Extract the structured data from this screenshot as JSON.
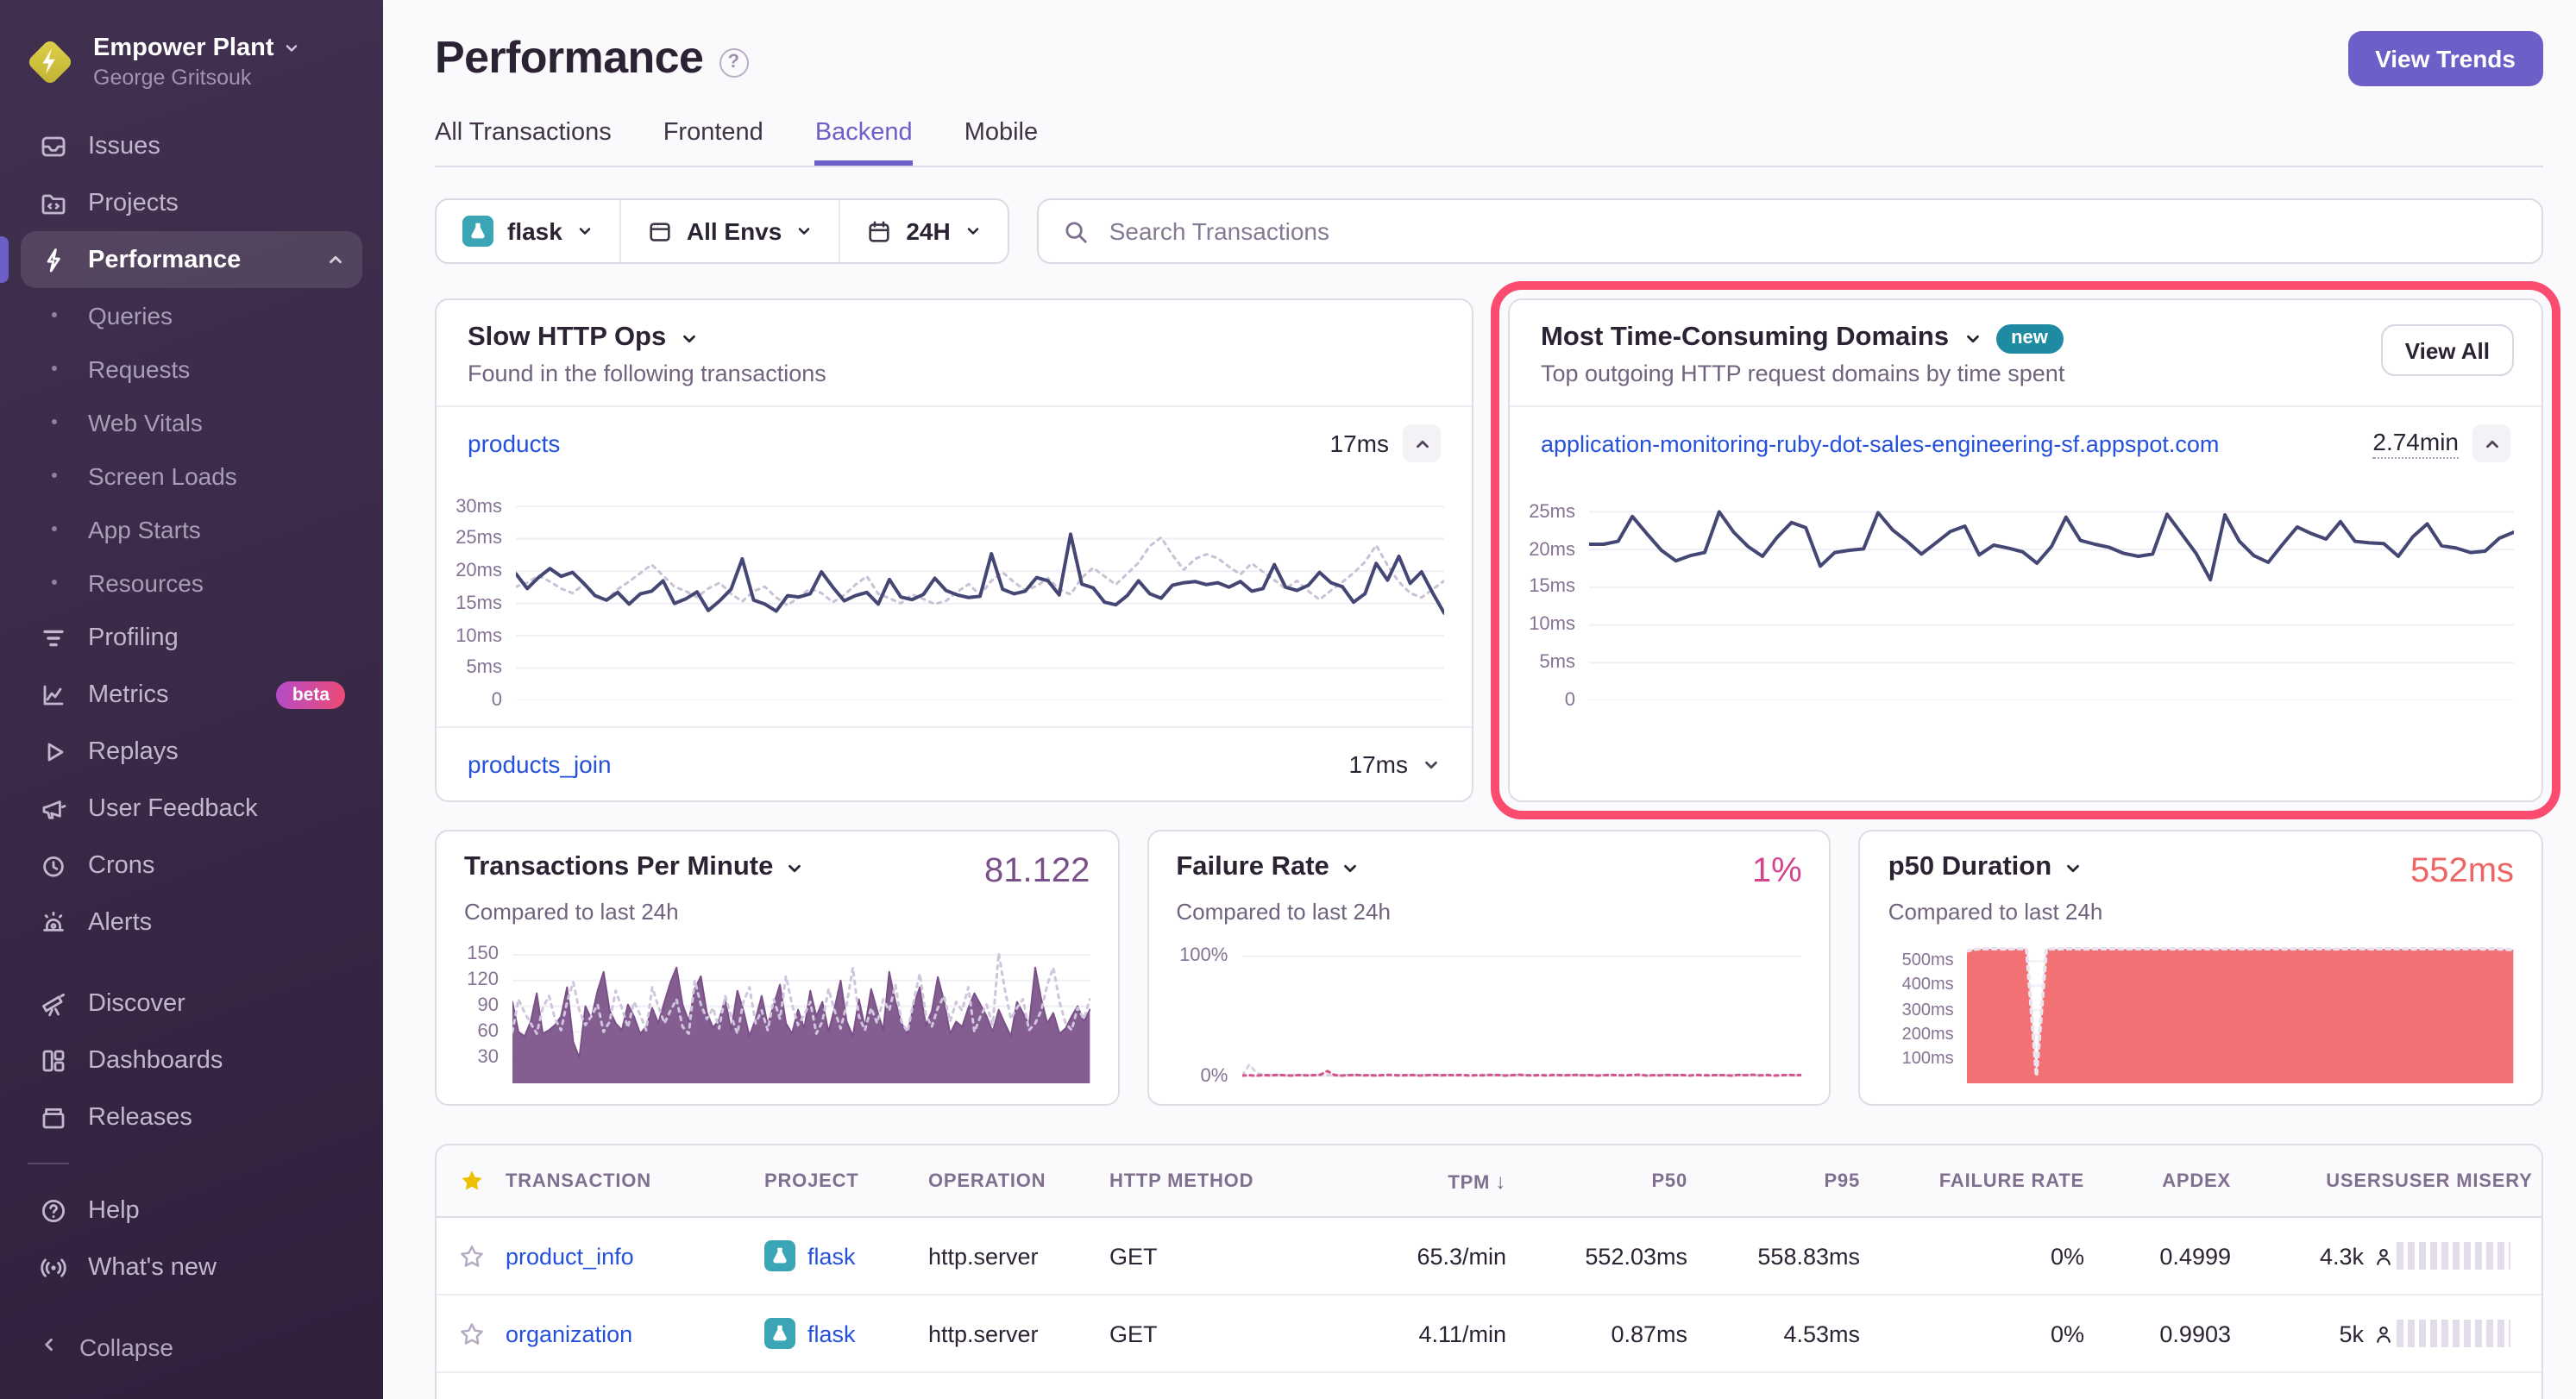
{
  "sidebar": {
    "org_name": "Empower Plant",
    "user_name": "George Gritsouk",
    "collapse_label": "Collapse",
    "items": [
      {
        "label": "Issues"
      },
      {
        "label": "Projects"
      },
      {
        "label": "Performance",
        "active": true
      },
      {
        "label": "Queries"
      },
      {
        "label": "Requests"
      },
      {
        "label": "Web Vitals"
      },
      {
        "label": "Screen Loads"
      },
      {
        "label": "App Starts"
      },
      {
        "label": "Resources"
      },
      {
        "label": "Profiling"
      },
      {
        "label": "Metrics",
        "badge": "beta"
      },
      {
        "label": "Replays"
      },
      {
        "label": "User Feedback"
      },
      {
        "label": "Crons"
      },
      {
        "label": "Alerts"
      },
      {
        "label": "Discover"
      },
      {
        "label": "Dashboards"
      },
      {
        "label": "Releases"
      },
      {
        "label": "Help"
      },
      {
        "label": "What's new"
      }
    ]
  },
  "header": {
    "title": "Performance",
    "view_trends_label": "View Trends",
    "tabs": [
      {
        "label": "All Transactions"
      },
      {
        "label": "Frontend"
      },
      {
        "label": "Backend",
        "active": true
      },
      {
        "label": "Mobile"
      }
    ]
  },
  "filters": {
    "project": "flask",
    "environment": "All Envs",
    "date_range": "24H",
    "search_placeholder": "Search Transactions"
  },
  "slow_http_card": {
    "title": "Slow HTTP Ops",
    "subtitle": "Found in the following transactions",
    "rows": [
      {
        "transaction": "products",
        "duration": "17ms"
      },
      {
        "transaction": "products_join",
        "duration": "17ms"
      }
    ]
  },
  "domains_card": {
    "title": "Most Time-Consuming Domains",
    "badge": "new",
    "view_all_label": "View All",
    "subtitle": "Top outgoing HTTP request domains by time spent",
    "rows": [
      {
        "domain": "application-monitoring-ruby-dot-sales-engineering-sf.appspot.com",
        "time_spent": "2.74min"
      }
    ]
  },
  "kpi_cards": {
    "tpm": {
      "title": "Transactions Per Minute",
      "value": "81.122",
      "subtitle": "Compared to last 24h"
    },
    "failure_rate": {
      "title": "Failure Rate",
      "value": "1%",
      "subtitle": "Compared to last 24h"
    },
    "p50": {
      "title": "p50 Duration",
      "value": "552ms",
      "subtitle": "Compared to last 24h"
    }
  },
  "table": {
    "columns": {
      "transaction": "TRANSACTION",
      "project": "PROJECT",
      "operation": "OPERATION",
      "http_method": "HTTP METHOD",
      "tpm": "TPM",
      "p50": "P50",
      "p95": "P95",
      "failure_rate": "FAILURE RATE",
      "apdex": "APDEX",
      "users": "USERS",
      "user_misery": "USER MISERY"
    },
    "sorted_by": "TPM",
    "sort_direction": "desc",
    "rows": [
      {
        "transaction": "product_info",
        "project": "flask",
        "operation": "http.server",
        "http_method": "GET",
        "tpm": "65.3/min",
        "p50": "552.03ms",
        "p95": "558.83ms",
        "failure_rate": "0%",
        "apdex": "0.4999",
        "users": "4.3k"
      },
      {
        "transaction": "organization",
        "project": "flask",
        "operation": "http.server",
        "http_method": "GET",
        "tpm": "4.11/min",
        "p50": "0.87ms",
        "p95": "4.53ms",
        "failure_rate": "0%",
        "apdex": "0.9903",
        "users": "5k"
      }
    ]
  },
  "colors": {
    "accent_purple": "#6C5FC7",
    "annotation_pink": "#FB4B6F",
    "link_blue": "#2550DC",
    "chart_navy": "#444674",
    "tpm_purple": "#7A5088",
    "failure_pink": "#D3448C",
    "p50_red": "#EF6465",
    "badge_new_teal": "#1E8BA3",
    "flask_teal": "#3AA5B4",
    "star_yellow": "#EBC000"
  },
  "charts": {
    "slow_http": {
      "type": "line",
      "unit": "ms",
      "ymin": 0,
      "ymax": 31.5,
      "yticks": [
        {
          "value": 30,
          "label": "30ms"
        },
        {
          "value": 25,
          "label": "25ms"
        },
        {
          "value": 20,
          "label": "20ms"
        },
        {
          "value": 15,
          "label": "15ms"
        },
        {
          "value": 10,
          "label": "10ms"
        },
        {
          "value": 5,
          "label": "5ms"
        },
        {
          "value": 0,
          "label": "0"
        }
      ],
      "series": [
        {
          "name": "previous period",
          "color": "#C9C1D6",
          "width": 1.5,
          "dash": "2 3",
          "values": [
            17.6,
            18.2,
            19.3,
            18.4,
            17.3,
            16.6,
            17.9,
            16.3,
            15.6,
            17.2,
            18.4,
            19.7,
            21.0,
            19.3,
            17.6,
            16.9,
            16.0,
            17.3,
            18.2,
            16.5,
            15.3,
            16.9,
            17.6,
            15.9,
            14.7,
            16.0,
            17.3,
            16.6,
            15.2,
            16.3,
            17.9,
            19.2,
            16.5,
            15.8,
            15.0,
            16.4,
            15.7,
            14.9,
            15.4,
            16.8,
            18.0,
            16.3,
            18.5,
            19.8,
            18.3,
            17.0,
            17.7,
            18.9,
            17.2,
            16.4,
            19.0,
            20.5,
            19.2,
            17.9,
            19.6,
            21.3,
            23.9,
            25.2,
            22.5,
            20.2,
            21.9,
            22.6,
            22.0,
            20.7,
            19.5,
            21.2,
            19.9,
            18.6,
            17.3,
            18.5,
            16.9,
            15.6,
            17.0,
            18.3,
            19.7,
            21.4,
            24.0,
            20.9,
            18.3,
            16.6,
            15.9,
            17.2,
            18.5
          ]
        },
        {
          "name": "current period",
          "color": "#444674",
          "width": 2,
          "values": [
            19.6,
            17.3,
            19.0,
            20.4,
            19.2,
            19.8,
            18.1,
            16.2,
            15.5,
            16.7,
            14.9,
            16.5,
            16.9,
            18.5,
            15.0,
            15.7,
            16.8,
            13.9,
            15.4,
            17.2,
            21.9,
            15.5,
            14.9,
            13.8,
            16.2,
            16.0,
            16.5,
            19.9,
            17.5,
            15.4,
            16.2,
            16.7,
            14.9,
            18.7,
            16.0,
            15.6,
            16.4,
            18.9,
            17.0,
            16.3,
            15.9,
            16.1,
            22.7,
            17.2,
            16.5,
            16.9,
            19.0,
            18.5,
            16.3,
            25.7,
            18.0,
            17.4,
            15.2,
            14.8,
            16.2,
            18.5,
            16.5,
            15.8,
            17.8,
            18.2,
            18.4,
            17.9,
            18.2,
            17.5,
            18.4,
            16.9,
            17.3,
            21.0,
            17.5,
            17.0,
            17.8,
            19.8,
            18.2,
            17.6,
            15.2,
            16.5,
            21.2,
            18.6,
            22.3,
            18.1,
            19.9,
            16.6,
            13.5
          ]
        }
      ]
    },
    "domains": {
      "type": "line",
      "unit": "ms",
      "ymin": 0,
      "ymax": 27,
      "yticks": [
        {
          "value": 25,
          "label": "25ms"
        },
        {
          "value": 20,
          "label": "20ms"
        },
        {
          "value": 15,
          "label": "15ms"
        },
        {
          "value": 10,
          "label": "10ms"
        },
        {
          "value": 5,
          "label": "5ms"
        },
        {
          "value": 0,
          "label": "0"
        }
      ],
      "series": [
        {
          "name": "current period",
          "color": "#444674",
          "width": 2,
          "values": [
            20.7,
            20.7,
            21.1,
            24.4,
            22.1,
            19.9,
            18.5,
            19.2,
            19.6,
            25.0,
            22.3,
            20.4,
            19.1,
            21.6,
            23.6,
            22.9,
            17.8,
            19.6,
            19.9,
            20.1,
            24.9,
            22.6,
            21.1,
            19.4,
            20.9,
            22.4,
            23.1,
            19.3,
            20.6,
            20.2,
            19.7,
            18.2,
            20.4,
            24.3,
            21.2,
            20.7,
            20.3,
            19.5,
            19.1,
            19.4,
            24.7,
            22.1,
            19.5,
            16.0,
            24.6,
            21.1,
            19.2,
            18.3,
            20.7,
            23.0,
            22.1,
            21.4,
            23.7,
            21.1,
            20.9,
            20.8,
            19.1,
            21.7,
            23.4,
            20.5,
            20.2,
            19.6,
            19.8,
            21.5,
            22.3
          ]
        }
      ]
    },
    "tpm": {
      "type": "area",
      "unit": "per minute",
      "ymin": 0,
      "ymax": 165,
      "yticks": [
        {
          "value": 150,
          "label": "150"
        },
        {
          "value": 120,
          "label": "120"
        },
        {
          "value": 90,
          "label": "90"
        },
        {
          "value": 60,
          "label": "60"
        },
        {
          "value": 30,
          "label": "30"
        }
      ],
      "series": [
        {
          "name": "current period",
          "color": "#7A5088",
          "width": 1,
          "fill": "#7A5088",
          "fill_opacity": 0.92,
          "values": [
            95,
            60,
            55,
            72,
            105,
            58,
            62,
            68,
            78,
            112,
            48,
            30,
            90,
            75,
            108,
            130,
            85,
            70,
            62,
            92,
            78,
            58,
            66,
            88,
            70,
            95,
            118,
            135,
            92,
            72,
            110,
            125,
            82,
            65,
            74,
            98,
            62,
            108,
            85,
            55,
            75,
            102,
            68,
            92,
            115,
            70,
            58,
            86,
            64,
            108,
            78,
            95,
            60,
            88,
            120,
            72,
            55,
            98,
            65,
            110,
            85,
            62,
            130,
            95,
            70,
            58,
            90,
            112,
            68,
            84,
            124,
            96,
            58,
            72,
            66,
            88,
            105,
            92,
            78,
            60,
            86,
            70,
            55,
            95,
            82,
            68,
            135,
            98,
            70,
            82,
            58,
            64,
            78,
            90,
            72,
            86
          ]
        },
        {
          "name": "previous period",
          "color": "#CFC5DC",
          "width": 1.5,
          "dash": "2 3",
          "values": [
            60,
            98,
            82,
            70,
            58,
            88,
            102,
            75,
            62,
            95,
            118,
            85,
            68,
            78,
            92,
            60,
            72,
            108,
            88,
            65,
            95,
            80,
            62,
            112,
            90,
            70,
            85,
            98,
            66,
            58,
            120,
            92,
            75,
            88,
            64,
            102,
            78,
            58,
            95,
            112,
            70,
            85,
            62,
            98,
            75,
            125,
            92,
            68,
            80,
            95,
            58,
            72,
            110,
            85,
            64,
            92,
            135,
            78,
            62,
            88,
            70,
            98,
            85,
            115,
            72,
            60,
            95,
            128,
            80,
            66,
            88,
            102,
            72,
            95,
            85,
            112,
            60,
            78,
            92,
            68,
            152,
            110,
            75,
            88,
            98,
            62,
            70,
            85,
            115,
            135,
            95,
            70,
            62,
            88,
            75,
            98
          ]
        }
      ]
    },
    "failure": {
      "type": "line",
      "unit": "percent",
      "ymin": -6,
      "ymax": 112,
      "yticks": [
        {
          "value": 100,
          "label": "100%"
        },
        {
          "value": 0,
          "label": "0%"
        }
      ],
      "series": [
        {
          "name": "previous period",
          "color": "#D9D2E2",
          "width": 1.5,
          "dash": "2 3",
          "values": [
            0.6,
            9.5,
            2.8,
            0.9,
            0.6,
            0.8,
            0.5,
            0.9,
            0.7,
            1.0,
            0.6,
            0.8,
            0.9,
            0.5,
            0.7,
            1.1,
            0.8,
            0.6,
            0.9,
            0.5,
            1.0,
            0.7,
            0.8,
            0.6,
            0.9,
            1.1,
            0.5,
            0.8,
            0.7,
            1.0,
            0.6,
            0.9,
            0.5,
            0.8,
            1.2,
            0.6,
            0.9,
            0.7,
            0.5,
            1.0,
            0.8,
            0.6,
            0.9,
            1.1,
            0.5,
            0.7,
            0.9,
            0.6,
            0.8,
            1.0,
            0.5,
            0.9,
            0.7,
            0.8,
            0.6,
            1.1,
            0.9,
            0.5,
            0.8,
            0.7,
            1.0,
            0.6,
            0.9,
            0.5,
            0.8,
            1.2,
            0.6,
            0.9,
            0.7,
            0.5,
            1.0,
            0.8,
            0.9,
            0.6,
            1.1,
            0.5,
            0.7,
            0.9,
            0.8,
            0.6
          ]
        },
        {
          "name": "current period",
          "color": "#D4548C",
          "width": 1.5,
          "dash": "2 2.5",
          "values": [
            0.5,
            0.8,
            0.4,
            0.9,
            0.6,
            1.0,
            0.7,
            0.5,
            0.9,
            0.6,
            0.8,
            1.2,
            4.2,
            0.9,
            0.5,
            0.7,
            1.0,
            0.6,
            0.8,
            0.5,
            0.9,
            1.1,
            0.6,
            0.7,
            0.9,
            0.5,
            0.8,
            1.0,
            0.6,
            0.9,
            0.7,
            1.1,
            0.5,
            0.8,
            0.6,
            1.0,
            0.9,
            0.5,
            0.7,
            1.2,
            0.8,
            0.6,
            0.9,
            0.5,
            1.0,
            0.7,
            0.8,
            1.1,
            0.6,
            0.9,
            0.5,
            0.8,
            1.0,
            0.7,
            0.6,
            0.9,
            1.2,
            0.5,
            0.8,
            0.6,
            1.0,
            0.7,
            0.9,
            0.5,
            1.1,
            0.8,
            0.6,
            0.9,
            0.7,
            0.5,
            1.0,
            0.8,
            1.2,
            0.6,
            0.9,
            0.5,
            0.7,
            1.0,
            0.8,
            0.9
          ]
        }
      ]
    },
    "p50": {
      "type": "area",
      "unit": "ms",
      "ymin": 0,
      "ymax": 580,
      "yticks": [
        {
          "value": 500,
          "label": "500ms"
        },
        {
          "value": 400,
          "label": "400ms"
        },
        {
          "value": 300,
          "label": "300ms"
        },
        {
          "value": 200,
          "label": "200ms"
        },
        {
          "value": 100,
          "label": "100ms"
        }
      ],
      "series": [
        {
          "name": "current period",
          "fill": "#F0696E",
          "fill_opacity": 0.95,
          "values": [
            543,
            551,
            552,
            552,
            551,
            552,
            552,
            30,
            552,
            551,
            552,
            552,
            551,
            552,
            552,
            552,
            551,
            552,
            552,
            552,
            552,
            551,
            552,
            552,
            552,
            551,
            552,
            552,
            551,
            552,
            552,
            552,
            551,
            552,
            552,
            552,
            552,
            551,
            552,
            552,
            552,
            551,
            552,
            552,
            552,
            551,
            552,
            552,
            552,
            551,
            552,
            552,
            551,
            552,
            550,
            548
          ]
        },
        {
          "name": "previous period",
          "color": "#EAE4F0",
          "width": 2,
          "dash": "2 3",
          "values": [
            543,
            551,
            552,
            552,
            551,
            552,
            552,
            30,
            552,
            551,
            552,
            552,
            551,
            552,
            552,
            552,
            551,
            552,
            552,
            552,
            552,
            551,
            552,
            552,
            552,
            551,
            552,
            552,
            551,
            552,
            552,
            552,
            551,
            552,
            552,
            552,
            552,
            551,
            552,
            552,
            552,
            551,
            552,
            552,
            552,
            551,
            552,
            552,
            552,
            551,
            552,
            552,
            551,
            552,
            550,
            548
          ]
        }
      ]
    }
  }
}
